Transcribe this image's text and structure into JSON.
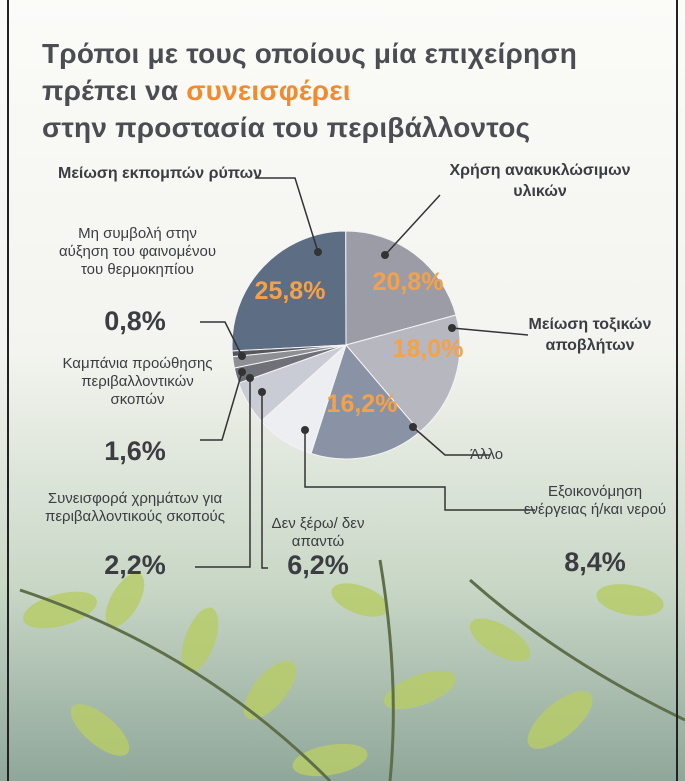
{
  "chart_data": {
    "type": "pie",
    "title": [
      "Τρόποι με τους οποίους μία επιχείρηση",
      "πρέπει να",
      "συνεισφέρει",
      "στην προστασία του περιβάλλοντος"
    ],
    "categories": [
      "Μείωση εκπομπών ρύπων",
      "Χρήση ανακυκλώσιμων υλικών",
      "Μείωση τοξικών αποβλήτων",
      "Άλλο",
      "Εξοικονόμηση ενέργειας ή/και νερού",
      "Δεν ξέρω/ δεν απαντώ",
      "Συνεισφορά χρημάτων για περιβαλλοντικούς σκοπούς",
      "Καμπάνια προώθησης περιβαλλοντικών σκοπών",
      "Μη συμβολή στην αύξηση του φαινομένου του θερμοκηπίου"
    ],
    "values": [
      25.8,
      20.8,
      18.0,
      16.2,
      8.4,
      6.2,
      2.2,
      1.6,
      0.8
    ],
    "value_labels": [
      "25,8%",
      "20,8%",
      "18,0%",
      "16,2%",
      "8,4%",
      "6,2%",
      "2,2%",
      "1,6%",
      "0,8%"
    ],
    "colors": [
      "#5d6d84",
      "#9c9ca6",
      "#b7b7c0",
      "#8a92a6",
      "#eceef2",
      "#c9ccd4",
      "#6f7178",
      "#8d8f95",
      "#55575d"
    ]
  }
}
